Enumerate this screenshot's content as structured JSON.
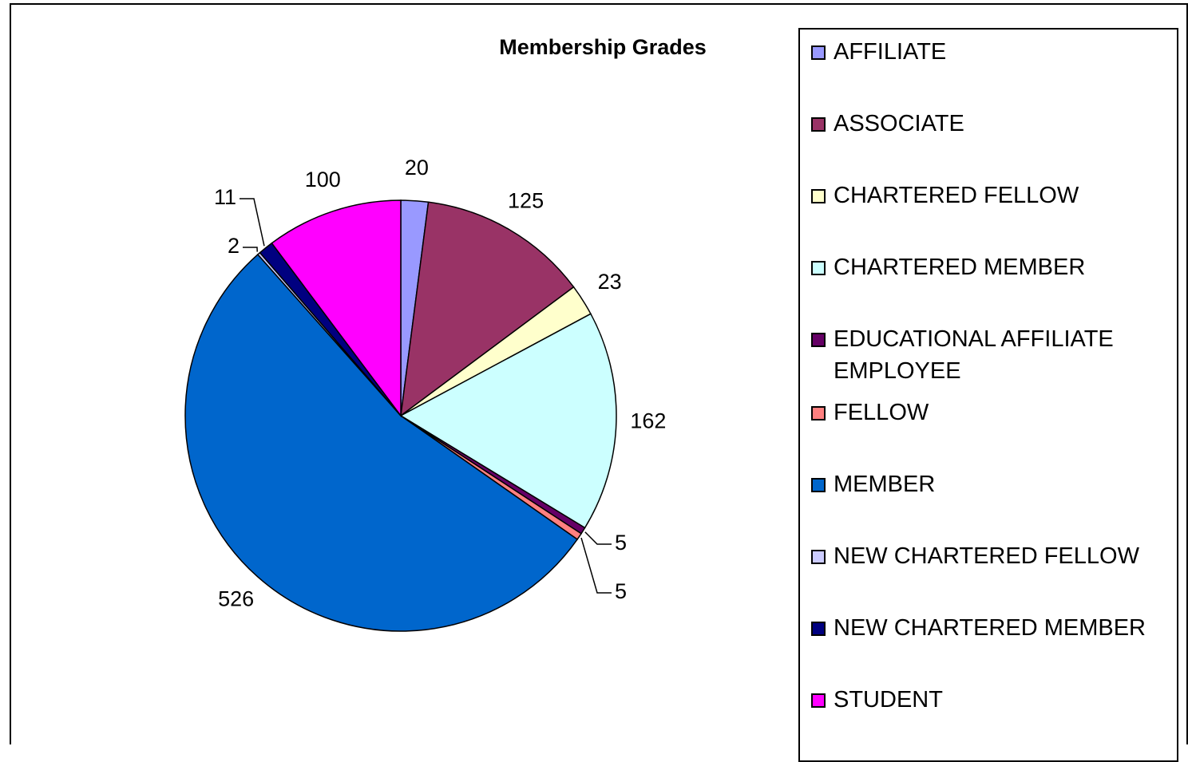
{
  "chart_data": {
    "type": "pie",
    "title": "Membership Grades",
    "categories": [
      "AFFILIATE",
      "ASSOCIATE",
      "CHARTERED FELLOW",
      "CHARTERED MEMBER",
      "EDUCATIONAL AFFILIATE EMPLOYEE",
      "FELLOW",
      "MEMBER",
      "NEW CHARTERED FELLOW",
      "NEW CHARTERED MEMBER",
      "STUDENT"
    ],
    "values": [
      20,
      125,
      23,
      162,
      5,
      5,
      526,
      2,
      11,
      100
    ],
    "colors": [
      "#9999ff",
      "#993366",
      "#ffffcc",
      "#ccffff",
      "#660066",
      "#ff8080",
      "#0066cc",
      "#ccccff",
      "#000080",
      "#ff00ff"
    ],
    "legend": "right"
  }
}
